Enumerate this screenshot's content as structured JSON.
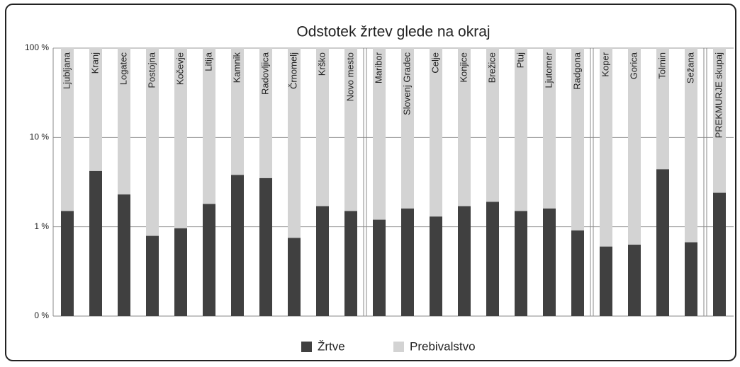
{
  "chart_data": {
    "type": "bar",
    "title": "Odstotek žrtev glede na okraj",
    "categories": [
      "Ljubljana",
      "Kranj",
      "Logatec",
      "Postojna",
      "Kočevje",
      "Litija",
      "Kamnik",
      "Radovljica",
      "Črnomelj",
      "Krško",
      "Novo mesto",
      "Maribor",
      "Slovenj Gradec",
      "Celje",
      "Konjice",
      "Brežice",
      "Ptuj",
      "Ljutomer",
      "Radgona",
      "Koper",
      "Gorica",
      "Tolmin",
      "Sežana",
      "PREKMURJE skupaj"
    ],
    "series": [
      {
        "name": "Prebivalstvo",
        "color": "#d3d3d3",
        "values": [
          100,
          100,
          100,
          100,
          100,
          100,
          100,
          100,
          100,
          100,
          100,
          100,
          100,
          100,
          100,
          100,
          100,
          100,
          100,
          100,
          100,
          100,
          100,
          100
        ]
      },
      {
        "name": "Žrtve",
        "color": "#404040",
        "values": [
          1.5,
          4.2,
          2.3,
          0.79,
          0.96,
          1.8,
          3.8,
          3.5,
          0.75,
          1.7,
          1.5,
          1.2,
          1.6,
          1.3,
          1.7,
          1.9,
          1.5,
          1.6,
          0.91,
          0.6,
          0.63,
          4.4,
          0.67,
          2.4
        ]
      }
    ],
    "log_scale": true,
    "ylim": [
      0.1,
      100
    ],
    "yticks": [
      {
        "value": 0.1,
        "label": "0 %"
      },
      {
        "value": 1,
        "label": "1 %"
      },
      {
        "value": 10,
        "label": "10 %"
      },
      {
        "value": 100,
        "label": "100 %"
      }
    ],
    "grid": true,
    "legend": "bottom"
  }
}
